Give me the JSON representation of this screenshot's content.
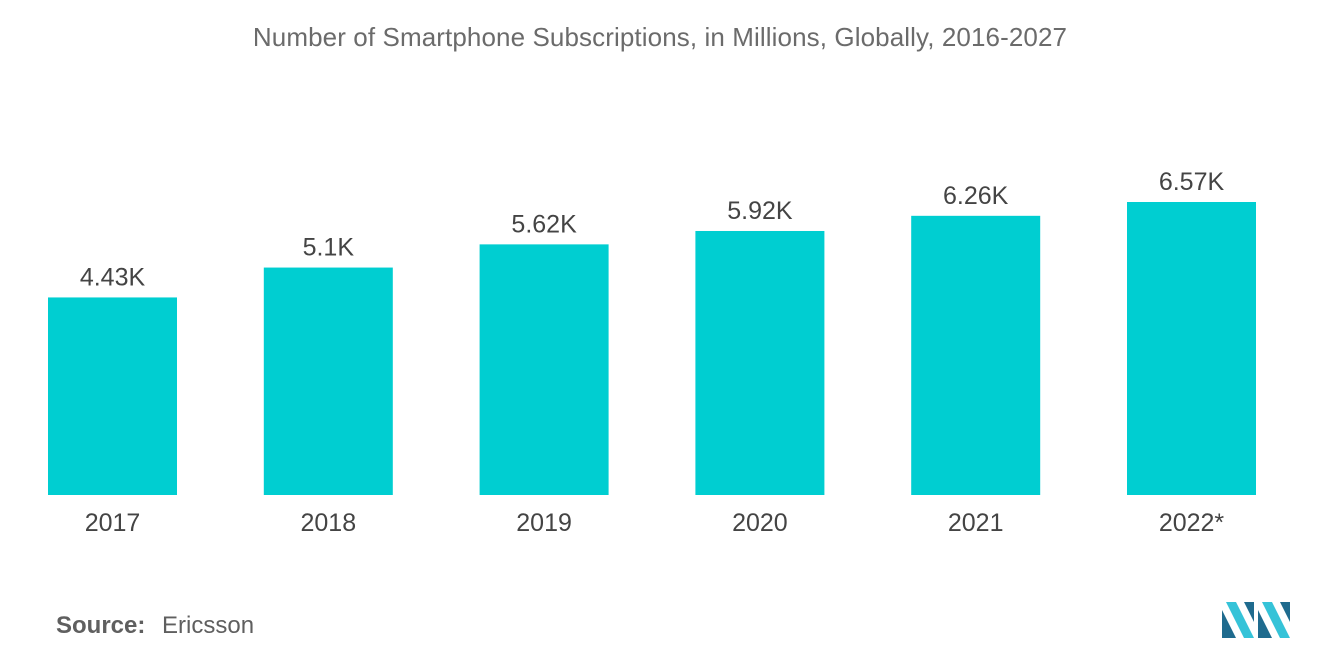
{
  "chart_data": {
    "type": "bar",
    "title": "Number of Smartphone Subscriptions, in Millions, Globally, 2016-2027",
    "categories": [
      "2017",
      "2018",
      "2019",
      "2020",
      "2021",
      "2022*"
    ],
    "values": [
      4.43,
      5.1,
      5.62,
      5.92,
      6.26,
      6.57
    ],
    "value_labels": [
      "4.43K",
      "5.1K",
      "5.62K",
      "5.92K",
      "6.26K",
      "6.57K"
    ],
    "xlabel": "",
    "ylabel": "",
    "ylim": [
      0,
      6.57
    ],
    "grid": false,
    "legend": "none",
    "bar_color": "#00ced1"
  },
  "source": {
    "label": "Source:",
    "value": "Ericsson"
  },
  "colors": {
    "bar": "#00ced1",
    "logo_dark": "#1f6b8e",
    "logo_light": "#35c3d8"
  }
}
